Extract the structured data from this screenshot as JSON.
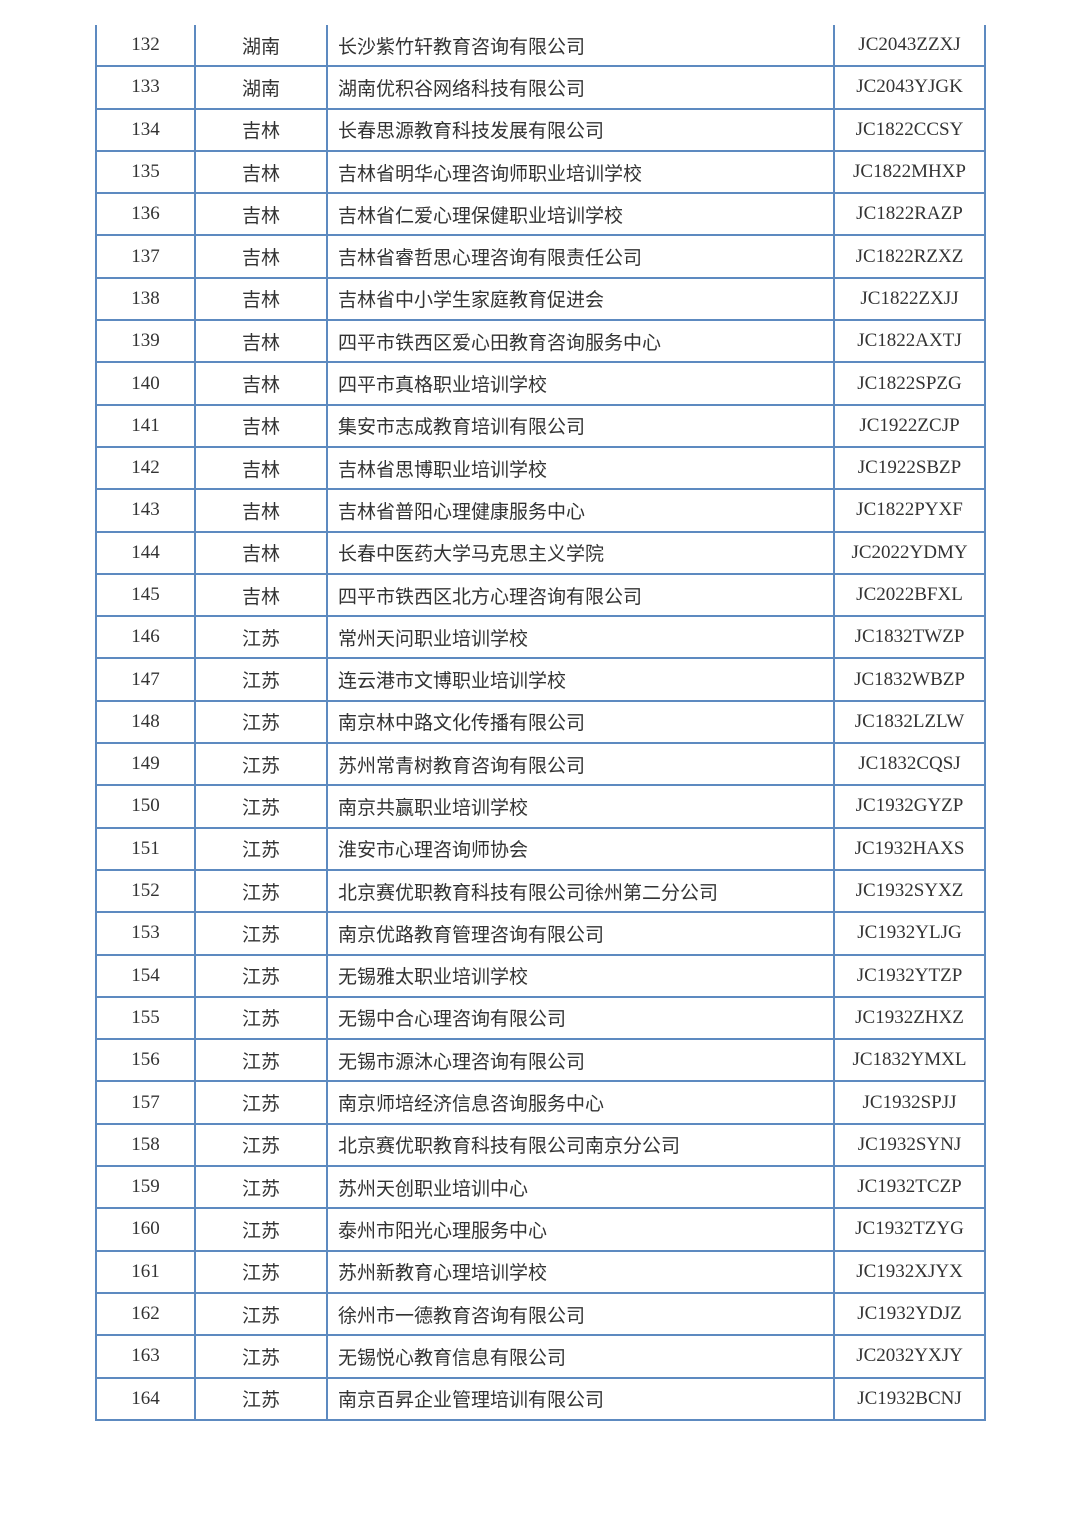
{
  "table": {
    "border_color": "#5d8ac0",
    "rows": [
      [
        "132",
        "湖南",
        "长沙紫竹轩教育咨询有限公司",
        "JC2043ZZXJ"
      ],
      [
        "133",
        "湖南",
        "湖南优积谷网络科技有限公司",
        "JC2043YJGK"
      ],
      [
        "134",
        "吉林",
        "长春思源教育科技发展有限公司",
        "JC1822CCSY"
      ],
      [
        "135",
        "吉林",
        "吉林省明华心理咨询师职业培训学校",
        "JC1822MHXP"
      ],
      [
        "136",
        "吉林",
        "吉林省仁爱心理保健职业培训学校",
        "JC1822RAZP"
      ],
      [
        "137",
        "吉林",
        "吉林省睿哲思心理咨询有限责任公司",
        "JC1822RZXZ"
      ],
      [
        "138",
        "吉林",
        "吉林省中小学生家庭教育促进会",
        "JC1822ZXJJ"
      ],
      [
        "139",
        "吉林",
        "四平市铁西区爱心田教育咨询服务中心",
        "JC1822AXTJ"
      ],
      [
        "140",
        "吉林",
        "四平市真格职业培训学校",
        "JC1822SPZG"
      ],
      [
        "141",
        "吉林",
        "集安市志成教育培训有限公司",
        "JC1922ZCJP"
      ],
      [
        "142",
        "吉林",
        "吉林省思博职业培训学校",
        "JC1922SBZP"
      ],
      [
        "143",
        "吉林",
        "吉林省普阳心理健康服务中心",
        "JC1822PYXF"
      ],
      [
        "144",
        "吉林",
        "长春中医药大学马克思主义学院",
        "JC2022YDMY"
      ],
      [
        "145",
        "吉林",
        "四平市铁西区北方心理咨询有限公司",
        "JC2022BFXL"
      ],
      [
        "146",
        "江苏",
        "常州天问职业培训学校",
        "JC1832TWZP"
      ],
      [
        "147",
        "江苏",
        "连云港市文博职业培训学校",
        "JC1832WBZP"
      ],
      [
        "148",
        "江苏",
        "南京林中路文化传播有限公司",
        "JC1832LZLW"
      ],
      [
        "149",
        "江苏",
        "苏州常青树教育咨询有限公司",
        "JC1832CQSJ"
      ],
      [
        "150",
        "江苏",
        "南京共赢职业培训学校",
        "JC1932GYZP"
      ],
      [
        "151",
        "江苏",
        "淮安市心理咨询师协会",
        "JC1932HAXS"
      ],
      [
        "152",
        "江苏",
        "北京赛优职教育科技有限公司徐州第二分公司",
        "JC1932SYXZ"
      ],
      [
        "153",
        "江苏",
        "南京优路教育管理咨询有限公司",
        "JC1932YLJG"
      ],
      [
        "154",
        "江苏",
        "无锡雅太职业培训学校",
        "JC1932YTZP"
      ],
      [
        "155",
        "江苏",
        "无锡中合心理咨询有限公司",
        "JC1932ZHXZ"
      ],
      [
        "156",
        "江苏",
        "无锡市源沐心理咨询有限公司",
        "JC1832YMXL"
      ],
      [
        "157",
        "江苏",
        "南京师培经济信息咨询服务中心",
        "JC1932SPJJ"
      ],
      [
        "158",
        "江苏",
        "北京赛优职教育科技有限公司南京分公司",
        "JC1932SYNJ"
      ],
      [
        "159",
        "江苏",
        "苏州天创职业培训中心",
        "JC1932TCZP"
      ],
      [
        "160",
        "江苏",
        "泰州市阳光心理服务中心",
        "JC1932TZYG"
      ],
      [
        "161",
        "江苏",
        "苏州新教育心理培训学校",
        "JC1932XJYX"
      ],
      [
        "162",
        "江苏",
        "徐州市一德教育咨询有限公司",
        "JC1932YDJZ"
      ],
      [
        "163",
        "江苏",
        "无锡悦心教育信息有限公司",
        "JC2032YXJY"
      ],
      [
        "164",
        "江苏",
        "南京百昇企业管理培训有限公司",
        "JC1932BCNJ"
      ]
    ]
  }
}
